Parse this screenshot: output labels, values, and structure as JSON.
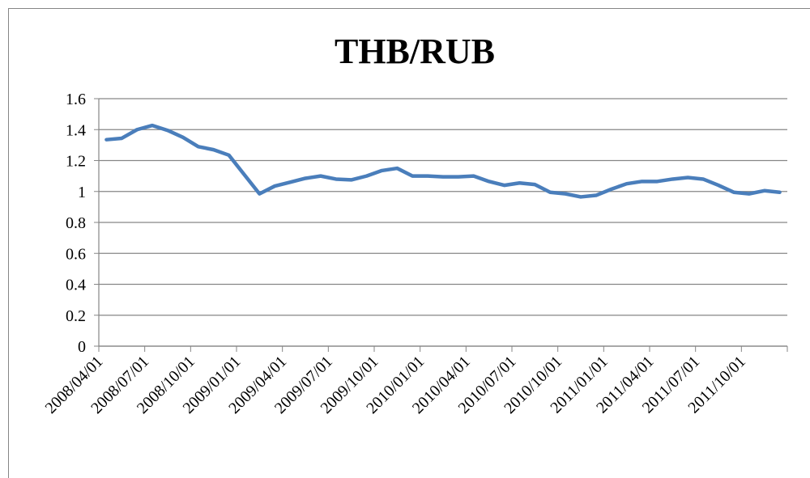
{
  "chart_data": {
    "type": "line",
    "title": "THB/RUB",
    "categories": [
      "2008/04/01",
      null,
      null,
      "2008/07/01",
      null,
      null,
      "2008/10/01",
      null,
      null,
      "2009/01/01",
      null,
      null,
      "2009/04/01",
      null,
      null,
      "2009/07/01",
      null,
      null,
      "2009/10/01",
      null,
      null,
      "2010/01/01",
      null,
      null,
      "2010/04/01",
      null,
      null,
      "2010/07/01",
      null,
      null,
      "2010/10/01",
      null,
      null,
      "2011/01/01",
      null,
      null,
      "2011/04/01",
      null,
      null,
      "2011/07/01",
      null,
      null,
      "2011/10/01",
      null,
      null
    ],
    "values": [
      1.335,
      1.344,
      1.4,
      1.427,
      1.395,
      1.35,
      1.29,
      1.27,
      1.235,
      1.11,
      0.985,
      1.035,
      1.06,
      1.085,
      1.1,
      1.08,
      1.075,
      1.1,
      1.135,
      1.15,
      1.1,
      1.1,
      1.095,
      1.095,
      1.1,
      1.065,
      1.04,
      1.055,
      1.045,
      0.995,
      0.985,
      0.965,
      0.975,
      1.015,
      1.05,
      1.065,
      1.065,
      1.08,
      1.09,
      1.08,
      1.04,
      0.995,
      0.985,
      1.005,
      0.995
    ],
    "color": "#4a7ebb",
    "ylim": [
      0,
      1.6
    ],
    "yticks": [
      0,
      0.2,
      0.4,
      0.6,
      0.8,
      1,
      1.2,
      1.4,
      1.6
    ],
    "grid": true
  }
}
